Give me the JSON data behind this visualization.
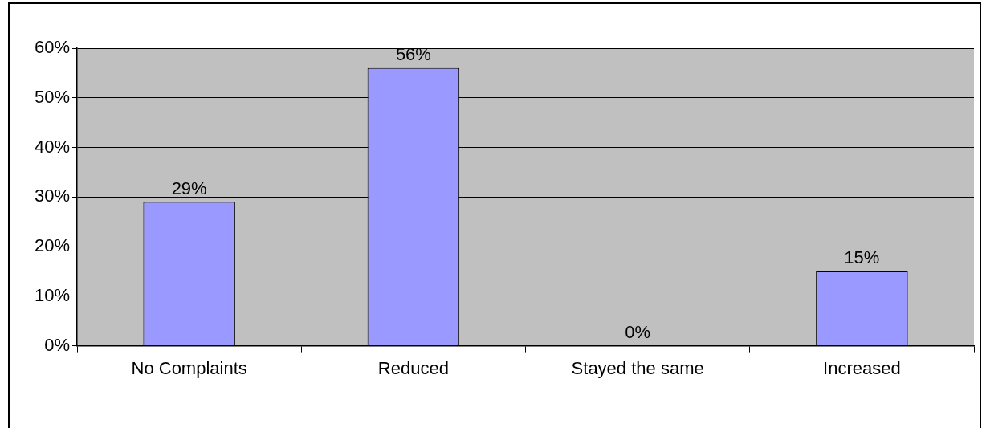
{
  "chart_data": {
    "type": "bar",
    "categories": [
      "No Complaints",
      "Reduced",
      "Stayed the same",
      "Increased"
    ],
    "values": [
      29,
      56,
      0,
      15
    ],
    "color": "#9999ff",
    "value_labels": [
      "29%",
      "56%",
      "0%",
      "15%"
    ],
    "ylim": [
      0,
      60
    ],
    "yticks": [
      {
        "value": 0,
        "label": "0%"
      },
      {
        "value": 10,
        "label": "10%"
      },
      {
        "value": 20,
        "label": "20%"
      },
      {
        "value": 30,
        "label": "30%"
      },
      {
        "value": 40,
        "label": "40%"
      },
      {
        "value": 50,
        "label": "50%"
      },
      {
        "value": 60,
        "label": "60%"
      }
    ],
    "grid": "y",
    "legend": false
  }
}
